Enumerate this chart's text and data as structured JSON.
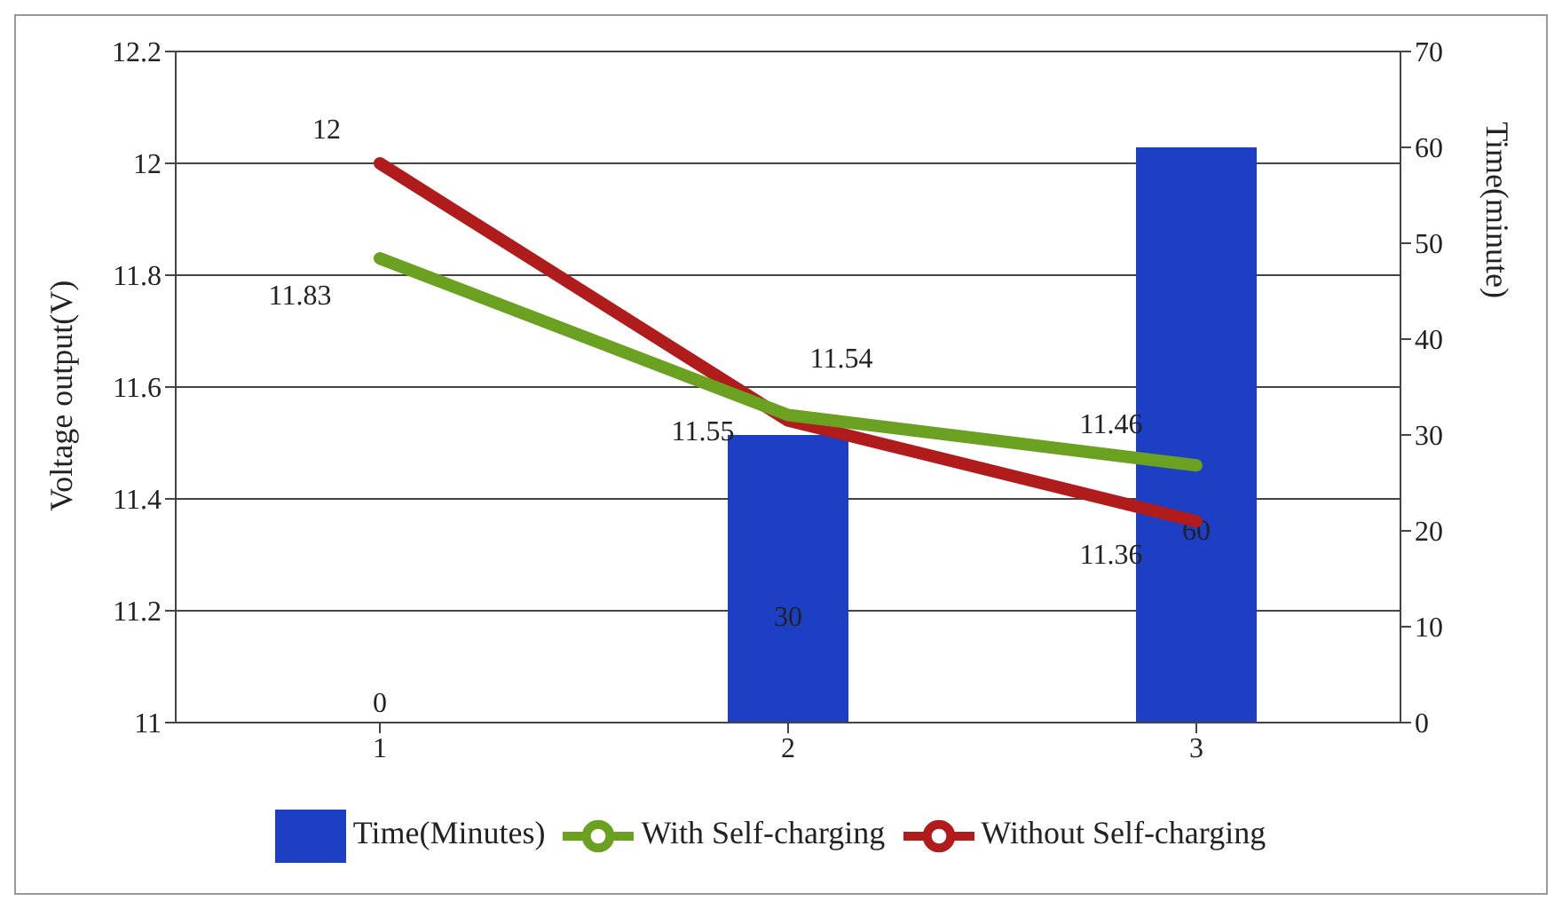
{
  "chart_data": {
    "type": "bar",
    "categories": [
      "1",
      "2",
      "3"
    ],
    "series": [
      {
        "name": "Time(Minutes)",
        "axis": "y2",
        "color": "#1c3fc4",
        "values": [
          0,
          30,
          60
        ]
      },
      {
        "name": "Without Self-charging",
        "type": "line",
        "color": "#b01c1c",
        "values": [
          12,
          11.54,
          11.36
        ]
      },
      {
        "name": "With Self-charging",
        "type": "line",
        "color": "#6aa121",
        "values": [
          11.83,
          11.55,
          11.46
        ]
      }
    ],
    "ylabel": "Voltage output(V)",
    "y2label": "Time(minute)",
    "ylim": [
      11,
      12.2
    ],
    "yticks": [
      11,
      11.2,
      11.4,
      11.6,
      11.8,
      12,
      12.2
    ],
    "y2lim": [
      0,
      70
    ],
    "y2ticks": [
      0,
      10,
      20,
      30,
      40,
      50,
      60,
      70
    ],
    "grid": "y",
    "legend": "bottom",
    "data_labels": true,
    "marker": "none",
    "line_style": "solid"
  }
}
